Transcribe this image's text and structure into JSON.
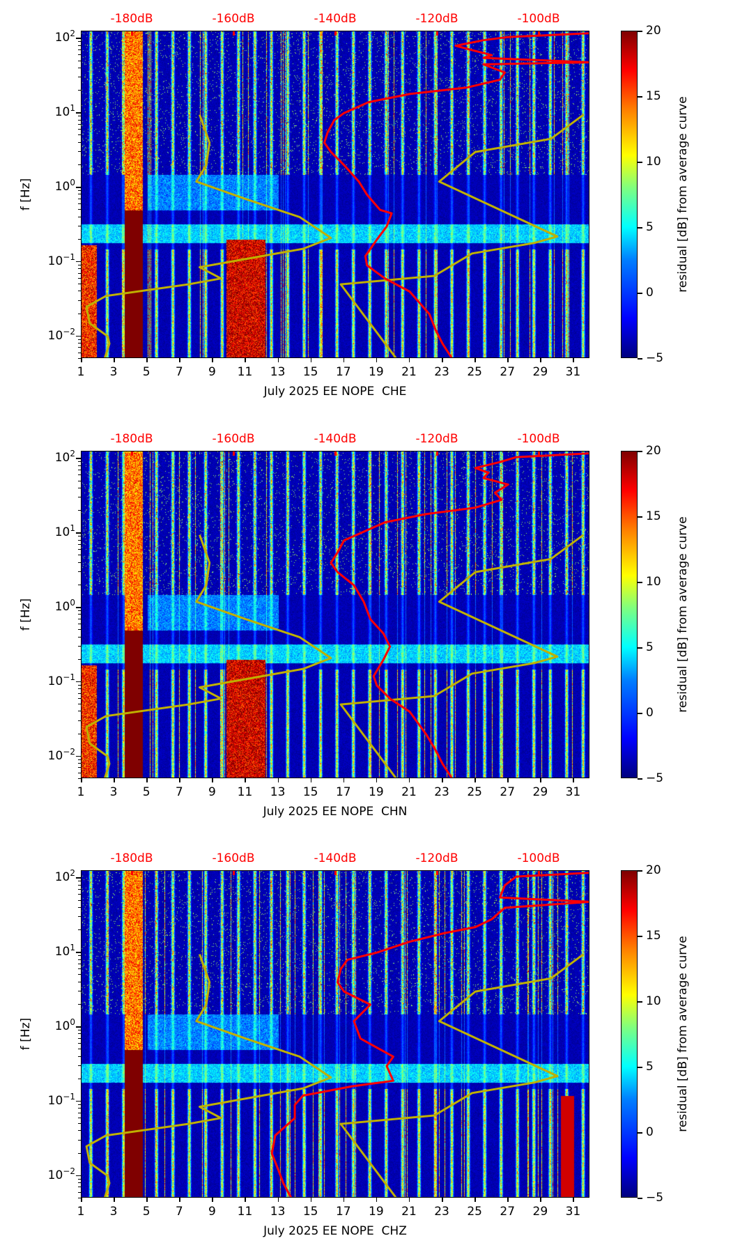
{
  "chart_data": [
    {
      "type": "heatmap",
      "title": "",
      "xlabel": "July 2025 EE NOPE  CHE",
      "ylabel": "f [Hz]",
      "channel": "CHE",
      "x_range": [
        1,
        32
      ],
      "x_ticks": [
        "1",
        "3",
        "5",
        "7",
        "9",
        "11",
        "13",
        "15",
        "17",
        "19",
        "21",
        "23",
        "25",
        "27",
        "29",
        "31"
      ],
      "y_scale": "log",
      "y_range": [
        0.005,
        125
      ],
      "y_ticks": [
        {
          "base": "10",
          "exp": "2",
          "value": 100
        },
        {
          "base": "10",
          "exp": "1",
          "value": 10
        },
        {
          "base": "10",
          "exp": "0",
          "value": 1
        },
        {
          "base": "10",
          "exp": "−1",
          "value": 0.1
        },
        {
          "base": "10",
          "exp": "−2",
          "value": 0.01
        }
      ],
      "top_axis_labels": [
        {
          "label": "-180dB",
          "x": 4.1
        },
        {
          "label": "-160dB",
          "x": 10.3
        },
        {
          "label": "-140dB",
          "x": 16.5
        },
        {
          "label": "-120dB",
          "x": 22.7
        },
        {
          "label": "-100dB",
          "x": 28.9
        }
      ],
      "colorbar": {
        "label": "residual [dB] from average curve",
        "range": [
          -5,
          20
        ],
        "ticks": [
          "20",
          "15",
          "10",
          "5",
          "0",
          "−5"
        ],
        "colormap": "jet"
      },
      "red_curve": {
        "name": "average PSD (dB scale on top axis)",
        "points": [
          [
            23.6,
            0.005
          ],
          [
            23.0,
            0.008
          ],
          [
            22.6,
            0.012
          ],
          [
            22.2,
            0.02
          ],
          [
            21.0,
            0.04
          ],
          [
            19.5,
            0.06
          ],
          [
            18.4,
            0.09
          ],
          [
            18.3,
            0.12
          ],
          [
            19.0,
            0.2
          ],
          [
            19.6,
            0.3
          ],
          [
            19.9,
            0.45
          ],
          [
            19.2,
            0.5
          ],
          [
            18.4,
            0.8
          ],
          [
            17.9,
            1.2
          ],
          [
            17.0,
            2.0
          ],
          [
            16.2,
            3.0
          ],
          [
            15.8,
            4.0
          ],
          [
            16.0,
            5.5
          ],
          [
            16.4,
            8.0
          ],
          [
            17.0,
            10
          ],
          [
            18.5,
            14
          ],
          [
            21.0,
            18
          ],
          [
            24.5,
            22
          ],
          [
            26.5,
            28
          ],
          [
            26.8,
            35
          ],
          [
            25.5,
            45
          ],
          [
            32,
            48
          ],
          [
            25.5,
            55
          ],
          [
            26.0,
            60
          ],
          [
            24.8,
            70
          ],
          [
            23.8,
            80
          ],
          [
            25.5,
            95
          ],
          [
            27,
            105
          ],
          [
            32,
            118
          ]
        ]
      },
      "olive_curve": {
        "name": "model curve",
        "points": [
          [
            2.4,
            0.005
          ],
          [
            2.7,
            0.008
          ],
          [
            2.6,
            0.01
          ],
          [
            1.5,
            0.015
          ],
          [
            1.3,
            0.025
          ],
          [
            2.5,
            0.035
          ],
          [
            7.5,
            0.05
          ],
          [
            9.5,
            0.06
          ],
          [
            8.2,
            0.085
          ],
          [
            14.5,
            0.15
          ],
          [
            16.2,
            0.21
          ],
          [
            14.3,
            0.4
          ],
          [
            11.0,
            0.7
          ],
          [
            8.0,
            1.2
          ],
          [
            8.6,
            2.0
          ],
          [
            8.8,
            4.0
          ],
          [
            8.2,
            9.5
          ],
          null,
          [
            20.2,
            0.005
          ],
          [
            16.8,
            0.05
          ],
          [
            22.5,
            0.065
          ],
          [
            24.8,
            0.13
          ],
          [
            28.6,
            0.18
          ],
          [
            30.0,
            0.22
          ],
          [
            22.8,
            1.2
          ],
          [
            25.0,
            3.0
          ],
          [
            29.6,
            4.5
          ],
          [
            31.6,
            9.5
          ]
        ]
      }
    },
    {
      "type": "heatmap",
      "title": "",
      "xlabel": "July 2025 EE NOPE  CHN",
      "ylabel": "f [Hz]",
      "channel": "CHN",
      "x_range": [
        1,
        32
      ],
      "x_ticks": [
        "1",
        "3",
        "5",
        "7",
        "9",
        "11",
        "13",
        "15",
        "17",
        "19",
        "21",
        "23",
        "25",
        "27",
        "29",
        "31"
      ],
      "y_scale": "log",
      "y_range": [
        0.005,
        125
      ],
      "y_ticks": [
        {
          "base": "10",
          "exp": "2",
          "value": 100
        },
        {
          "base": "10",
          "exp": "1",
          "value": 10
        },
        {
          "base": "10",
          "exp": "0",
          "value": 1
        },
        {
          "base": "10",
          "exp": "−1",
          "value": 0.1
        },
        {
          "base": "10",
          "exp": "−2",
          "value": 0.01
        }
      ],
      "top_axis_labels": [
        {
          "label": "-180dB",
          "x": 4.1
        },
        {
          "label": "-160dB",
          "x": 10.3
        },
        {
          "label": "-140dB",
          "x": 16.5
        },
        {
          "label": "-120dB",
          "x": 22.7
        },
        {
          "label": "-100dB",
          "x": 28.9
        }
      ],
      "colorbar": {
        "label": "residual [dB] from average curve",
        "range": [
          -5,
          20
        ],
        "ticks": [
          "20",
          "15",
          "10",
          "5",
          "0",
          "−5"
        ],
        "colormap": "jet"
      },
      "red_curve": {
        "name": "average PSD (dB scale on top axis)",
        "points": [
          [
            23.6,
            0.005
          ],
          [
            23.0,
            0.008
          ],
          [
            22.6,
            0.012
          ],
          [
            22.0,
            0.02
          ],
          [
            21.0,
            0.04
          ],
          [
            19.8,
            0.06
          ],
          [
            19.0,
            0.09
          ],
          [
            18.8,
            0.12
          ],
          [
            19.4,
            0.2
          ],
          [
            19.8,
            0.3
          ],
          [
            19.4,
            0.45
          ],
          [
            18.6,
            0.7
          ],
          [
            18.2,
            1.2
          ],
          [
            17.6,
            2.0
          ],
          [
            16.6,
            3.0
          ],
          [
            16.2,
            4.0
          ],
          [
            16.6,
            5.5
          ],
          [
            17.0,
            8.0
          ],
          [
            18.0,
            10
          ],
          [
            19.5,
            14
          ],
          [
            22.0,
            18
          ],
          [
            25.0,
            22
          ],
          [
            26.6,
            28
          ],
          [
            26.2,
            35
          ],
          [
            27.0,
            45
          ],
          [
            25.5,
            55
          ],
          [
            25.8,
            65
          ],
          [
            25.0,
            75
          ],
          [
            26.5,
            90
          ],
          [
            27.5,
            105
          ],
          [
            32,
            118
          ]
        ]
      },
      "olive_curve": {
        "name": "model curve",
        "points": [
          [
            2.4,
            0.005
          ],
          [
            2.7,
            0.008
          ],
          [
            2.6,
            0.01
          ],
          [
            1.5,
            0.015
          ],
          [
            1.3,
            0.025
          ],
          [
            2.5,
            0.035
          ],
          [
            7.5,
            0.05
          ],
          [
            9.5,
            0.06
          ],
          [
            8.2,
            0.085
          ],
          [
            14.5,
            0.15
          ],
          [
            16.2,
            0.21
          ],
          [
            14.3,
            0.4
          ],
          [
            11.0,
            0.7
          ],
          [
            8.0,
            1.2
          ],
          [
            8.6,
            2.0
          ],
          [
            8.8,
            4.0
          ],
          [
            8.2,
            9.5
          ],
          null,
          [
            20.2,
            0.005
          ],
          [
            16.8,
            0.05
          ],
          [
            22.5,
            0.065
          ],
          [
            24.8,
            0.13
          ],
          [
            28.6,
            0.18
          ],
          [
            30.0,
            0.22
          ],
          [
            22.8,
            1.2
          ],
          [
            25.0,
            3.0
          ],
          [
            29.6,
            4.5
          ],
          [
            31.6,
            9.5
          ]
        ]
      }
    },
    {
      "type": "heatmap",
      "title": "",
      "xlabel": "July 2025 EE NOPE  CHZ",
      "ylabel": "f [Hz]",
      "channel": "CHZ",
      "x_range": [
        1,
        32
      ],
      "x_ticks": [
        "1",
        "3",
        "5",
        "7",
        "9",
        "11",
        "13",
        "15",
        "17",
        "19",
        "21",
        "23",
        "25",
        "27",
        "29",
        "31"
      ],
      "y_scale": "log",
      "y_range": [
        0.005,
        125
      ],
      "y_ticks": [
        {
          "base": "10",
          "exp": "2",
          "value": 100
        },
        {
          "base": "10",
          "exp": "1",
          "value": 10
        },
        {
          "base": "10",
          "exp": "0",
          "value": 1
        },
        {
          "base": "10",
          "exp": "−1",
          "value": 0.1
        },
        {
          "base": "10",
          "exp": "−2",
          "value": 0.01
        }
      ],
      "top_axis_labels": [
        {
          "label": "-180dB",
          "x": 4.1
        },
        {
          "label": "-160dB",
          "x": 10.3
        },
        {
          "label": "-140dB",
          "x": 16.5
        },
        {
          "label": "-120dB",
          "x": 22.7
        },
        {
          "label": "-100dB",
          "x": 28.9
        }
      ],
      "colorbar": {
        "label": "residual [dB] from average curve",
        "range": [
          -5,
          20
        ],
        "ticks": [
          "20",
          "15",
          "10",
          "5",
          "0",
          "−5"
        ],
        "colormap": "jet"
      },
      "red_curve": {
        "name": "average PSD (dB scale on top axis)",
        "points": [
          [
            13.8,
            0.005
          ],
          [
            13.3,
            0.008
          ],
          [
            13.0,
            0.012
          ],
          [
            12.6,
            0.02
          ],
          [
            12.8,
            0.035
          ],
          [
            14.0,
            0.06
          ],
          [
            14.0,
            0.09
          ],
          [
            14.5,
            0.12
          ],
          [
            17.5,
            0.16
          ],
          [
            20.0,
            0.19
          ],
          [
            19.6,
            0.3
          ],
          [
            20.0,
            0.4
          ],
          [
            18.0,
            0.7
          ],
          [
            17.6,
            1.2
          ],
          [
            18.6,
            2.0
          ],
          [
            17.0,
            3.0
          ],
          [
            16.6,
            4.0
          ],
          [
            16.8,
            6.0
          ],
          [
            17.2,
            8.0
          ],
          [
            19.0,
            10
          ],
          [
            21.0,
            14
          ],
          [
            23.0,
            18
          ],
          [
            25.0,
            22
          ],
          [
            26.0,
            28
          ],
          [
            26.8,
            40
          ],
          [
            32,
            48
          ],
          [
            26.5,
            55
          ],
          [
            26.8,
            80
          ],
          [
            27.5,
            105
          ],
          [
            32,
            118
          ]
        ]
      },
      "olive_curve": {
        "name": "model curve",
        "points": [
          [
            2.4,
            0.005
          ],
          [
            2.7,
            0.008
          ],
          [
            2.6,
            0.01
          ],
          [
            1.5,
            0.015
          ],
          [
            1.3,
            0.025
          ],
          [
            2.5,
            0.035
          ],
          [
            7.5,
            0.05
          ],
          [
            9.5,
            0.06
          ],
          [
            8.2,
            0.085
          ],
          [
            14.5,
            0.15
          ],
          [
            16.2,
            0.21
          ],
          [
            14.3,
            0.4
          ],
          [
            11.0,
            0.7
          ],
          [
            8.0,
            1.2
          ],
          [
            8.6,
            2.0
          ],
          [
            8.8,
            4.0
          ],
          [
            8.2,
            9.5
          ],
          null,
          [
            20.2,
            0.005
          ],
          [
            16.8,
            0.05
          ],
          [
            22.5,
            0.065
          ],
          [
            24.8,
            0.13
          ],
          [
            28.6,
            0.18
          ],
          [
            30.0,
            0.22
          ],
          [
            22.8,
            1.2
          ],
          [
            25.0,
            3.0
          ],
          [
            29.6,
            4.5
          ],
          [
            31.6,
            9.5
          ]
        ]
      }
    }
  ],
  "colors": {
    "red_curve": "#ff0000",
    "olive_curve": "#bfb000",
    "db_label": "#ff0000"
  }
}
